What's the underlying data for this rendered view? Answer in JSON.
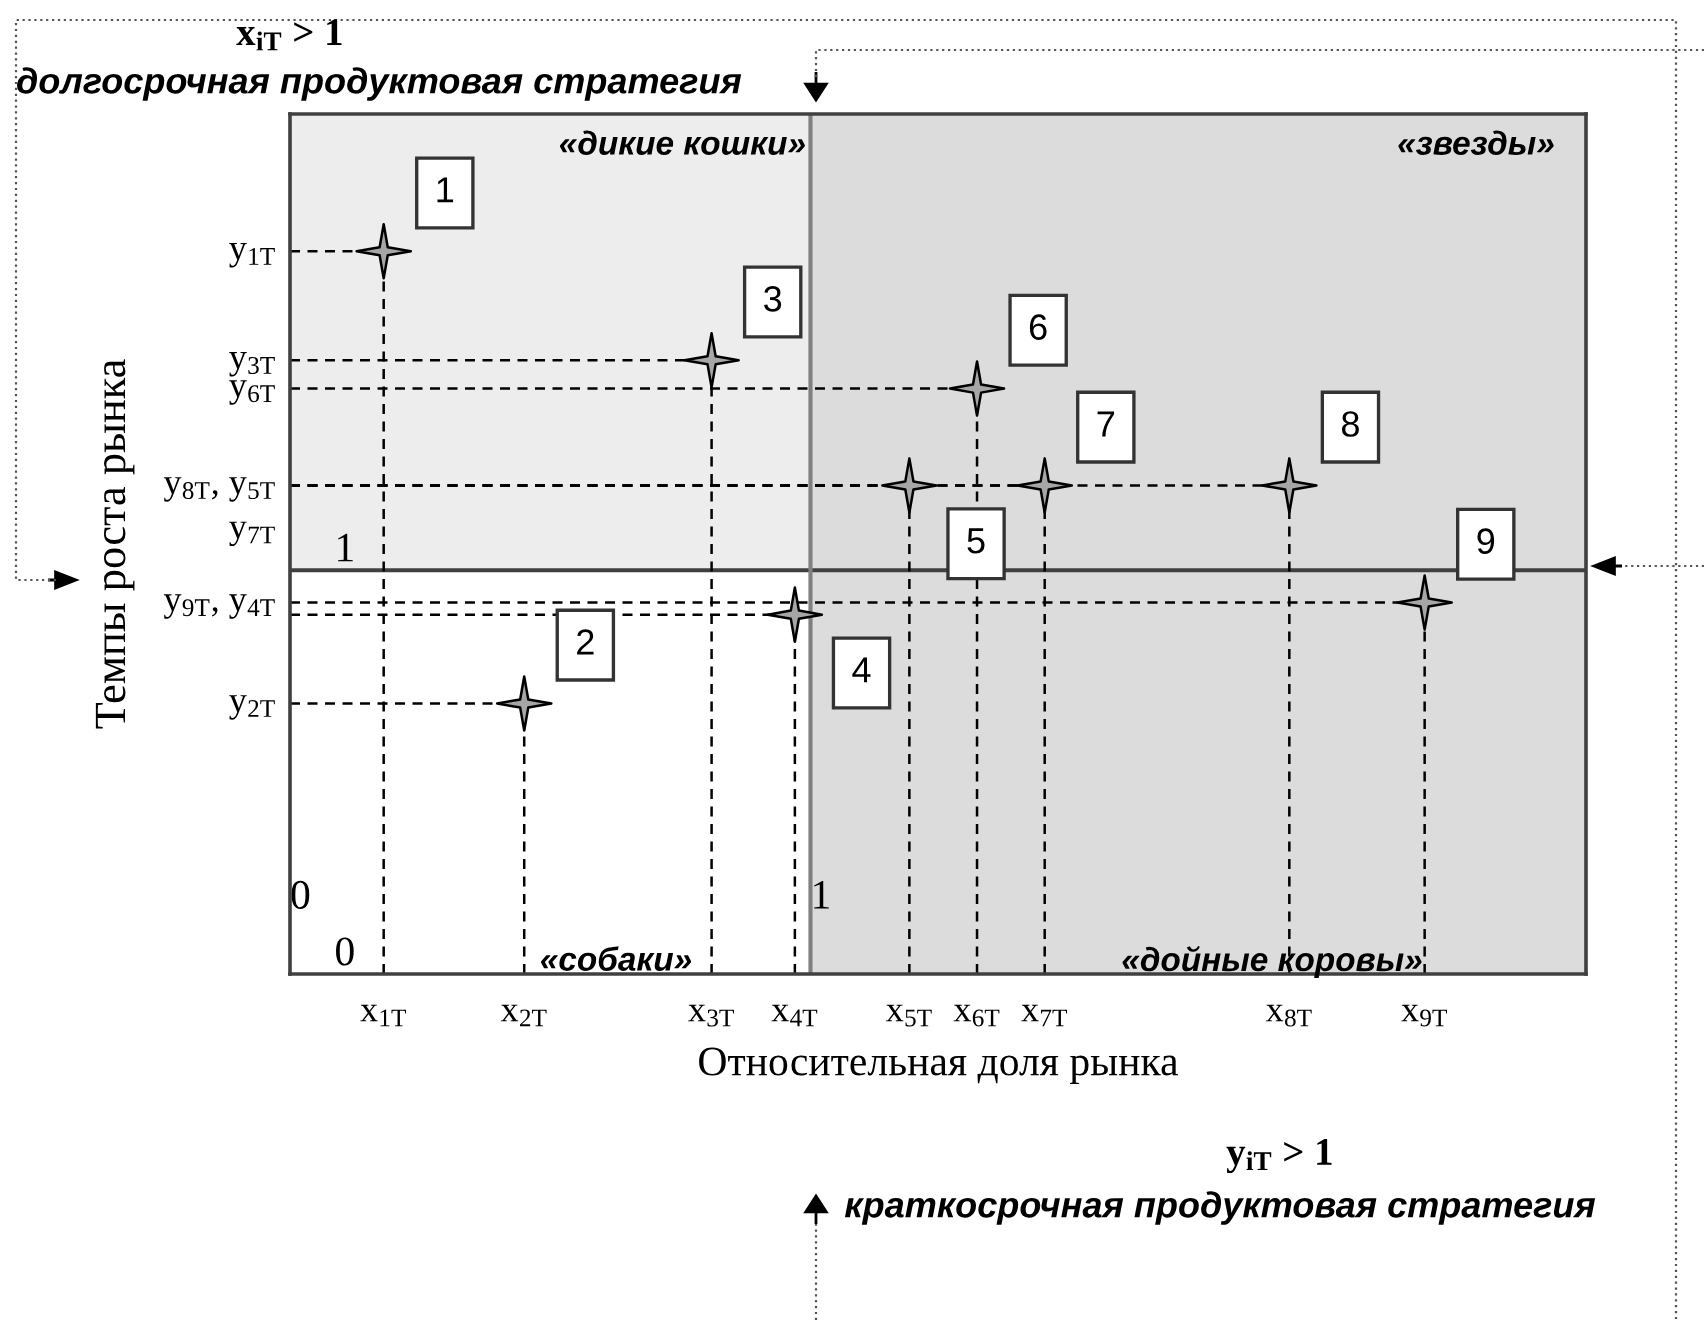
{
  "chart_data": {
    "type": "scatter",
    "xlabel": "Относительная доля рынка",
    "ylabel": "Темпы роста рынка",
    "xlim": [
      0,
      2.49
    ],
    "ylim": [
      0,
      2.13
    ],
    "xticks": [
      0,
      1
    ],
    "yticks": [
      0,
      1
    ],
    "series": [
      {
        "name": "1",
        "color": "#a6a6a6",
        "x": [
          0.18
        ],
        "values": [
          1.79
        ],
        "errors": [
          [
            0,
            1.79
          ]
        ],
        "xerrors": [
          [
            0,
            0.18
          ]
        ]
      },
      {
        "name": "2",
        "color": "#a6a6a6",
        "x": [
          0.45
        ],
        "values": [
          0.67
        ],
        "errors": [
          [
            0,
            0.67
          ]
        ],
        "xerrors": [
          [
            0,
            0.45
          ]
        ]
      },
      {
        "name": "3",
        "color": "#a6a6a6",
        "x": [
          0.81
        ],
        "values": [
          1.52
        ],
        "errors": [
          [
            0,
            1.52
          ]
        ],
        "xerrors": [
          [
            0,
            0.81
          ]
        ]
      },
      {
        "name": "4",
        "color": "#a6a6a6",
        "x": [
          0.97
        ],
        "values": [
          0.89
        ],
        "errors": [
          [
            0,
            0.89
          ]
        ],
        "xerrors": [
          [
            0,
            0.97
          ]
        ]
      },
      {
        "name": "5",
        "color": "#a6a6a6",
        "x": [
          1.19
        ],
        "values": [
          1.21
        ],
        "errors": [
          [
            0,
            1.21
          ]
        ],
        "xerrors": [
          [
            0,
            1.19
          ]
        ]
      },
      {
        "name": "6",
        "color": "#a6a6a6",
        "x": [
          1.32
        ],
        "values": [
          1.45
        ],
        "errors": [
          [
            0,
            1.45
          ]
        ],
        "xerrors": [
          [
            0,
            1.32
          ]
        ]
      },
      {
        "name": "7",
        "color": "#a6a6a6",
        "x": [
          1.45
        ],
        "values": [
          1.21
        ],
        "errors": [
          [
            0,
            1.21
          ]
        ],
        "xerrors": [
          [
            0,
            1.45
          ]
        ]
      },
      {
        "name": "8",
        "color": "#a6a6a6",
        "x": [
          1.92
        ],
        "values": [
          1.21
        ],
        "errors": [
          [
            0,
            1.21
          ]
        ],
        "xerrors": [
          [
            0,
            1.92
          ]
        ]
      },
      {
        "name": "9",
        "color": "#a6a6a6",
        "x": [
          2.18
        ],
        "values": [
          0.92
        ],
        "errors": [
          [
            0,
            0.92
          ]
        ],
        "xerrors": [
          [
            0,
            2.18
          ]
        ]
      }
    ],
    "marker": "star",
    "bands": [
      {
        "axis": "y",
        "from": 1,
        "to": 2.13,
        "color": "#ededed"
      },
      {
        "axis": "x",
        "from": 1,
        "to": 2.49,
        "color": "#dcdcdc"
      }
    ],
    "ref_lines": [
      {
        "axis": "y",
        "value": 1,
        "color": "#404040",
        "line_style": "solid"
      },
      {
        "axis": "x",
        "value": 1,
        "color": "#808080",
        "line_style": "solid"
      }
    ],
    "annotations": [
      "x$_{iT}$ > 1",
      "долгосрочная продуктовая стратегия",
      "y$_{iT}$ > 1",
      "краткосрочная продуктовая стратегия",
      "«дикие кошки»",
      "«звезды»",
      "«собаки»",
      "«дойные коровы»",
      {
        "text": "x$_{1T}$",
        "x": 0.18,
        "y": 0
      },
      {
        "text": "x$_{2T}$",
        "x": 0.45,
        "y": 0
      },
      {
        "text": "x$_{3T}$",
        "x": 0.81,
        "y": 0
      },
      {
        "text": "x$_{4T}$",
        "x": 0.97,
        "y": 0
      },
      {
        "text": "x$_{5T}$",
        "x": 1.19,
        "y": 0
      },
      {
        "text": "x$_{6T}$",
        "x": 1.32,
        "y": 0
      },
      {
        "text": "x$_{7T}$",
        "x": 1.45,
        "y": 0
      },
      {
        "text": "x$_{8T}$",
        "x": 1.92,
        "y": 0
      },
      {
        "text": "x$_{9T}$",
        "x": 2.18,
        "y": 0
      },
      {
        "text": "y$_{1T}$",
        "x": 0,
        "y": 1.79
      },
      {
        "text": "y$_{3T}$",
        "x": 0,
        "y": 1.52
      },
      {
        "text": "y$_{6T}$",
        "x": 0,
        "y": 1.45
      },
      {
        "text": "y$_{8T}$, y$_{5T}$",
        "x": 0,
        "y": 1.21
      },
      {
        "text": "y$_{7T}$",
        "x": 0,
        "y": 1.1
      },
      {
        "text": "y$_{9T}$, y$_{4T}$",
        "x": 0,
        "y": 0.92
      },
      {
        "text": "y$_{2T}$",
        "x": 0,
        "y": 0.67
      }
    ]
  }
}
